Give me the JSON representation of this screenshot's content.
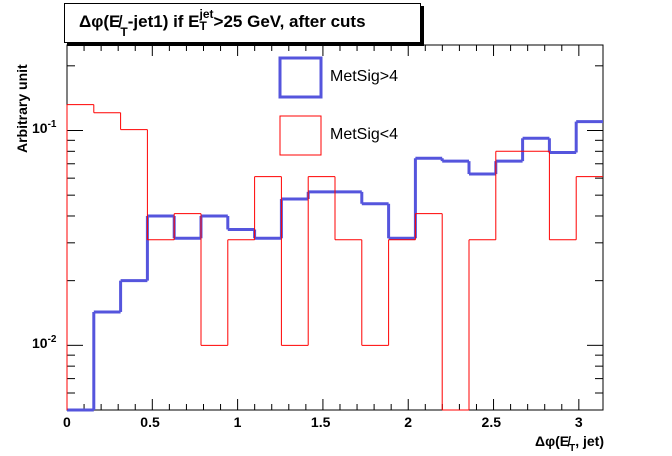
{
  "chart_data": {
    "type": "histogram",
    "title": {
      "prefix": "Δφ(E̸",
      "sub1": "T",
      "mid": "-jet1) if E",
      "sup": "jet",
      "sub2": "T",
      "suffix": ">25 GeV, after cuts"
    },
    "xlabel": {
      "prefix": "Δφ(E̸",
      "sub": "T",
      "suffix": ", jet)"
    },
    "ylabel": "Arbitrary unit",
    "xlim": [
      0,
      3.1416
    ],
    "ylim": [
      0.005,
      0.25
    ],
    "yscale": "log",
    "x_ticks": [
      "0",
      "0.5",
      "1",
      "1.5",
      "2",
      "2.5",
      "3"
    ],
    "y_ticks": [
      {
        "base": "10",
        "exp": "-2",
        "value": 0.01
      },
      {
        "base": "10",
        "exp": "-1",
        "value": 0.1
      }
    ],
    "n_bins": 20,
    "legend_position": "top-center",
    "series": [
      {
        "name": "MetSig>4",
        "color": "#5555dd",
        "values": [
          0,
          0.0143,
          0.02,
          0.04,
          0.0315,
          0.04,
          0.0346,
          0.0315,
          0.048,
          0.0518,
          0.0518,
          0.0456,
          0.0315,
          0.0743,
          0.072,
          0.0627,
          0.072,
          0.092,
          0.079,
          0.11
        ]
      },
      {
        "name": "MetSig<4",
        "color": "#ff0000",
        "values": [
          0.132,
          0.121,
          0.101,
          0.031,
          0.041,
          0.01,
          0.031,
          0.061,
          0.01,
          0.061,
          0.031,
          0.01,
          0.031,
          0.041,
          0,
          0.031,
          0.08,
          0.08,
          0.031,
          0.061
        ]
      }
    ]
  }
}
